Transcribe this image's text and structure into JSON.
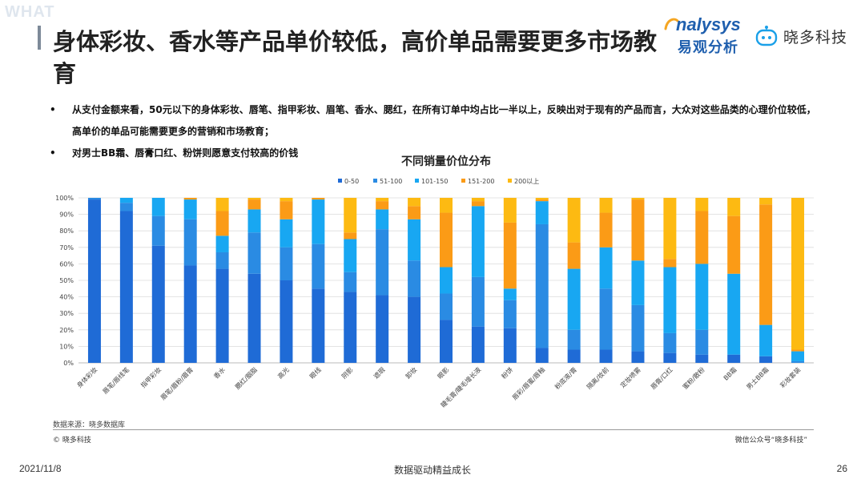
{
  "header": {
    "tag": "WHAT",
    "title": "身体彩妆、香水等产品单价较低，高价单品需要更多市场教育"
  },
  "logos": {
    "analysys_en": "nalysys",
    "analysys_cn": "易观分析",
    "xiaoduo": "晓多科技"
  },
  "bullets": [
    "从支付金额来看，50元以下的身体彩妆、唇笔、指甲彩妆、眉笔、香水、腮红，在所有订单中均占比一半以上，反映出对于现有的产品而言，大众对这些品类的心理价位较低，高单价的单品可能需要更多的营销和市场教育；",
    "对男士BB霜、唇膏口红、粉饼则愿意支付较高的价钱"
  ],
  "bullet_marker": "•",
  "footer": {
    "source": "数据来源：晓多数据库",
    "copyright": "© 晓多科技",
    "wechat": "微信公众号“晓多科技”",
    "date": "2021/11/8",
    "slogan": "数据驱动精益成长",
    "page": "26"
  },
  "chart_data": {
    "type": "bar",
    "stacked": true,
    "percent": true,
    "title": "不同销量价位分布",
    "legend_position": "top",
    "ylim": [
      0,
      100
    ],
    "yticks": [
      "0%",
      "10%",
      "20%",
      "30%",
      "40%",
      "50%",
      "60%",
      "70%",
      "80%",
      "90%",
      "100%"
    ],
    "grid": true,
    "categories": [
      "身体彩妆",
      "唇笔/唇线笔",
      "指甲彩妆",
      "眉笔/眉粉/眉膏",
      "香水",
      "腮红/胭脂",
      "高光",
      "眼线",
      "阴影",
      "遮瑕",
      "卸妆",
      "眼影",
      "睫毛膏/睫毛增长液",
      "粉饼",
      "唇彩/唇蜜/唇釉",
      "粉底液/膏",
      "隔离/妆前",
      "定妆喷雾",
      "唇膏/口红",
      "蜜粉/散粉",
      "BB霜",
      "男士BB霜",
      "彩妆套装"
    ],
    "series": [
      {
        "name": "0-50",
        "color": "#1f6bd6",
        "values": [
          99,
          92,
          71,
          59,
          57,
          54,
          50,
          45,
          43,
          41,
          40,
          26,
          22,
          21,
          9,
          8,
          8,
          7,
          6,
          5,
          5,
          4,
          0
        ]
      },
      {
        "name": "51-100",
        "color": "#2a8be3",
        "values": [
          1,
          5,
          18,
          28,
          10,
          25,
          20,
          27,
          12,
          40,
          22,
          16,
          30,
          17,
          75,
          12,
          37,
          28,
          12,
          15,
          0,
          0,
          1
        ]
      },
      {
        "name": "101-150",
        "color": "#18a7f2",
        "values": [
          0,
          3,
          11,
          12,
          10,
          14,
          17,
          27,
          20,
          12,
          25,
          16,
          43,
          7,
          14,
          37,
          25,
          27,
          40,
          40,
          49,
          19,
          6
        ]
      },
      {
        "name": "151-200",
        "color": "#fb9b16",
        "values": [
          0,
          0,
          0,
          1,
          15,
          6,
          11,
          1,
          4,
          5,
          8,
          33,
          3,
          40,
          1,
          16,
          21,
          37,
          5,
          32,
          35,
          73,
          1
        ]
      },
      {
        "name": "200以上",
        "color": "#fdba12",
        "values": [
          0,
          0,
          0,
          0,
          8,
          1,
          2,
          0,
          21,
          2,
          5,
          9,
          2,
          15,
          1,
          27,
          9,
          1,
          37,
          8,
          11,
          4,
          92
        ]
      }
    ]
  }
}
